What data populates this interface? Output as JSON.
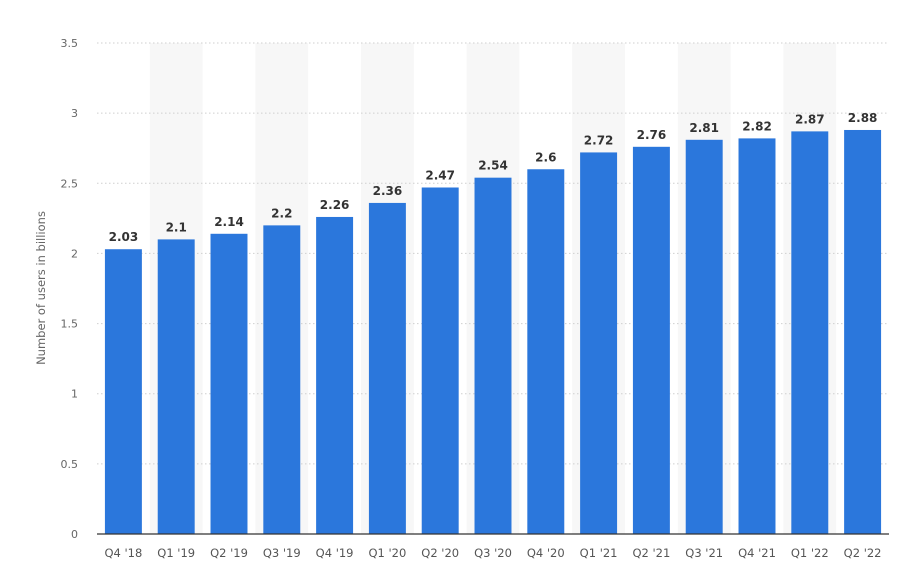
{
  "chart_data": {
    "type": "bar",
    "title": "",
    "xlabel": "",
    "ylabel": "Number of users in billions",
    "ylim": [
      0,
      3.5
    ],
    "yticks": [
      0,
      0.5,
      1,
      1.5,
      2,
      2.5,
      3,
      3.5
    ],
    "ytick_labels": [
      "0",
      "0.5",
      "1",
      "1.5",
      "2",
      "2.5",
      "3",
      "3.5"
    ],
    "grid": true,
    "categories": [
      "Q4 '18",
      "Q1 '19",
      "Q2 '19",
      "Q3 '19",
      "Q4 '19",
      "Q1 '20",
      "Q2 '20",
      "Q3 '20",
      "Q4 '20",
      "Q1 '21",
      "Q2 '21",
      "Q3 '21",
      "Q4 '21",
      "Q1 '22",
      "Q2 '22"
    ],
    "values": [
      2.03,
      2.1,
      2.14,
      2.2,
      2.26,
      2.36,
      2.47,
      2.54,
      2.6,
      2.72,
      2.76,
      2.81,
      2.82,
      2.87,
      2.88
    ],
    "value_labels": [
      "2.03",
      "2.1",
      "2.14",
      "2.2",
      "2.26",
      "2.36",
      "2.47",
      "2.54",
      "2.6",
      "2.72",
      "2.76",
      "2.81",
      "2.82",
      "2.87",
      "2.88"
    ],
    "bar_color": "#2b77dc",
    "band_color": "#f7f7f7"
  }
}
